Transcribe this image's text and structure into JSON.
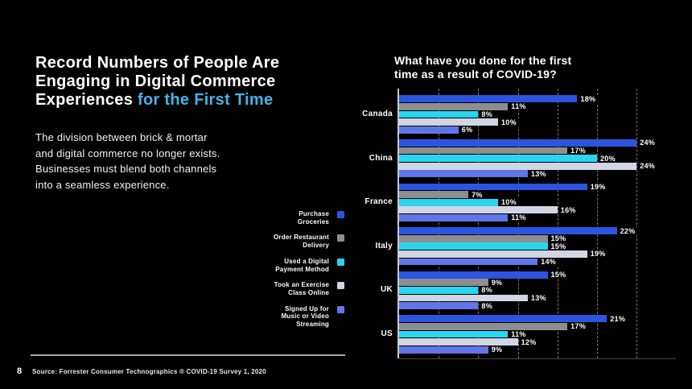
{
  "page": {
    "number": "8",
    "background_color": "#000000"
  },
  "headline": {
    "line1": "Record Numbers of People Are",
    "line2": "Engaging in Digital Commerce",
    "line3_white": "Experiences ",
    "line3_accent": "for the First Time",
    "accent_color": "#45B2E8"
  },
  "body": {
    "text": "The division between brick & mortar\nand digital commerce no longer exists.\nBusinesses must blend both channels\ninto a seamless experience."
  },
  "legend": {
    "items": [
      {
        "label": "Purchase\nGroceries",
        "color": "#2B54E1"
      },
      {
        "label": "Order Restaurant\nDelivery",
        "color": "#8E8E90"
      },
      {
        "label": "Used a Digital\nPayment Method",
        "color": "#2AD5F2"
      },
      {
        "label": "Took an Exercise\nClass Online",
        "color": "#D2D5E4"
      },
      {
        "label": "Signed Up for\nMusic or Video\nStreaming",
        "color": "#6076E8"
      }
    ]
  },
  "chart_data": {
    "type": "bar",
    "orientation": "horizontal",
    "title": "What have you done for the first\ntime as a result of COVID-19?",
    "categories": [
      "Canada",
      "China",
      "France",
      "Italy",
      "UK",
      "US"
    ],
    "series": [
      {
        "name": "Purchase Groceries",
        "color": "#2B54E1",
        "values": [
          18,
          24,
          19,
          22,
          15,
          21
        ]
      },
      {
        "name": "Order Restaurant Delivery",
        "color": "#8E8E90",
        "values": [
          11,
          17,
          7,
          15,
          9,
          17
        ]
      },
      {
        "name": "Used a Digital Payment Method",
        "color": "#2AD5F2",
        "values": [
          8,
          20,
          10,
          15,
          8,
          11
        ]
      },
      {
        "name": "Took an Exercise Class Online",
        "color": "#D2D5E4",
        "values": [
          10,
          24,
          16,
          19,
          13,
          12
        ]
      },
      {
        "name": "Signed Up for Music or Video Streaming",
        "color": "#6076E8",
        "values": [
          6,
          13,
          11,
          14,
          8,
          9
        ]
      }
    ],
    "value_suffix": "%",
    "xlim": [
      0,
      24
    ],
    "gridlines_pct": [
      4,
      8,
      12,
      16,
      20,
      24
    ],
    "grid_style": "dashed-vertical",
    "legend_position": "left-of-chart"
  },
  "source": {
    "text": "Source: Forrester Consumer Technographics ® COVID-19 Survey 1, 2020"
  }
}
